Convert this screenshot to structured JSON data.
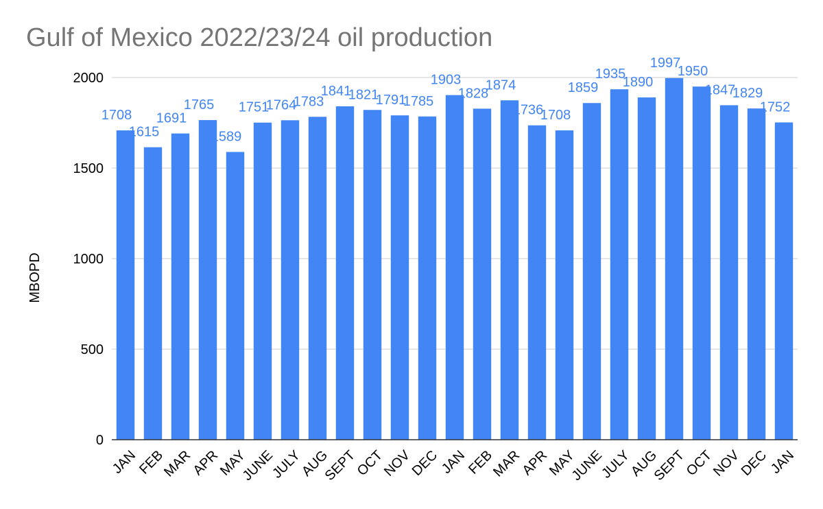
{
  "chart_data": {
    "type": "bar",
    "title": "Gulf of Mexico 2022/23/24 oil production",
    "ylabel": "MBOPD",
    "xlabel": "",
    "ylim": [
      0,
      2000
    ],
    "yticks": [
      "0",
      "500",
      "1000",
      "1500",
      "2000"
    ],
    "grid": true,
    "legend": "none",
    "categories": [
      "JAN",
      "FEB",
      "MAR",
      "APR",
      "MAY",
      "JUNE",
      "JULY",
      "AUG",
      "SEPT",
      "OCT",
      "NOV",
      "DEC",
      "JAN",
      "FEB",
      "MAR",
      "APR",
      "MAY",
      "JUNE",
      "JULY",
      "AUG",
      "SEPT",
      "OCT",
      "NOV",
      "DEC",
      "JAN"
    ],
    "values": [
      1708,
      1615,
      1691,
      1765,
      1589,
      1751,
      1764,
      1783,
      1841,
      1821,
      1791,
      1785,
      1903,
      1828,
      1874,
      1736,
      1708,
      1859,
      1935,
      1890,
      1997,
      1950,
      1847,
      1829,
      1752
    ],
    "data_labels": [
      "1708",
      "1615",
      "1691",
      "1765",
      "1589",
      "1751",
      "1764",
      "1783",
      "1841",
      "1821",
      "1791",
      "1785",
      "1903",
      "1828",
      "1874",
      "1736",
      "1708",
      "1859",
      "1935",
      "1890",
      "1997",
      "1950",
      "1847",
      "1829",
      "1752"
    ],
    "bar_color": "#4285f4",
    "label_color": "#4285f4",
    "gridline_color": "#cccccc",
    "axis_color": "#333333"
  }
}
